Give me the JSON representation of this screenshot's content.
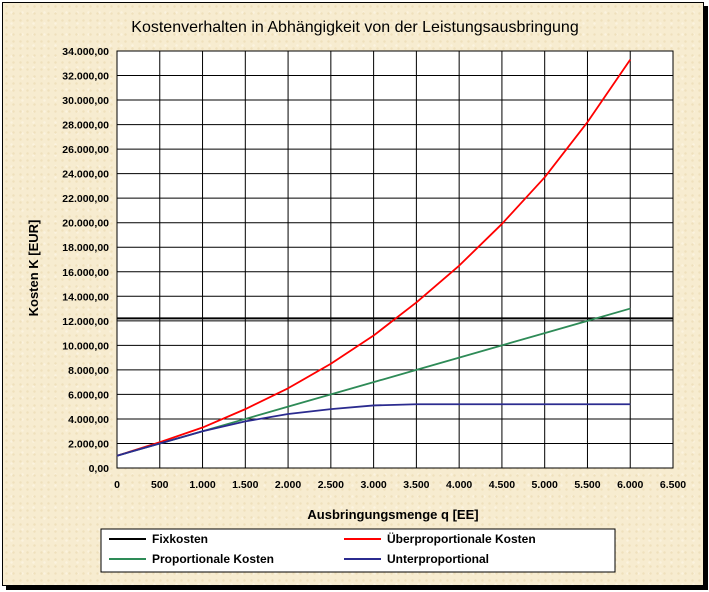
{
  "chart_data": {
    "type": "line",
    "title": "Kostenverhalten in Abhängigkeit von der Leistungsausbringung",
    "xlabel": "Ausbringungsmenge q [EE]",
    "ylabel": "Kosten K [EUR]",
    "xlim": [
      0,
      6500
    ],
    "ylim": [
      0,
      34000
    ],
    "xticks": [
      0,
      500,
      1000,
      1500,
      2000,
      2500,
      3000,
      3500,
      4000,
      4500,
      5000,
      5500,
      6000,
      6500
    ],
    "xtick_labels": [
      "0",
      "500",
      "1.000",
      "1.500",
      "2.000",
      "2.500",
      "3.000",
      "3.500",
      "4.000",
      "4.500",
      "5.000",
      "5.500",
      "6.000",
      "6.500"
    ],
    "yticks": [
      0,
      2000,
      4000,
      6000,
      8000,
      10000,
      12000,
      14000,
      16000,
      18000,
      20000,
      22000,
      24000,
      26000,
      28000,
      30000,
      32000,
      34000
    ],
    "ytick_labels": [
      "0,00",
      "2.000,00",
      "4.000,00",
      "6.000,00",
      "8.000,00",
      "10.000,00",
      "12.000,00",
      "14.000,00",
      "16.000,00",
      "18.000,00",
      "20.000,00",
      "22.000,00",
      "24.000,00",
      "26.000,00",
      "28.000,00",
      "30.000,00",
      "32.000,00",
      "34.000,00"
    ],
    "grid": true,
    "legend_position": "bottom",
    "x": [
      0,
      500,
      1000,
      1500,
      2000,
      2500,
      3000,
      3500,
      4000,
      4500,
      5000,
      5500,
      6000
    ],
    "series": [
      {
        "name": "Fixkosten",
        "color": "#000000",
        "values": [
          12200,
          12200,
          12200,
          12200,
          12200,
          12200,
          12200,
          12200,
          12200,
          12200,
          12200,
          12200,
          12200
        ],
        "extends_full_axis": true
      },
      {
        "name": "Überproportionale Kosten",
        "color": "#ff0000",
        "values": [
          1000,
          2100,
          3300,
          4800,
          6500,
          8500,
          10800,
          13500,
          16500,
          19900,
          23700,
          28200,
          33300
        ]
      },
      {
        "name": "Proportionale Kosten",
        "color": "#2e8b57",
        "values": [
          1000,
          2000,
          3000,
          4000,
          5000,
          6000,
          7000,
          8000,
          9000,
          10000,
          11000,
          12000,
          13000
        ]
      },
      {
        "name": "Unterproportional",
        "color": "#2b2b8f",
        "values": [
          1000,
          2000,
          3000,
          3800,
          4400,
          4800,
          5100,
          5200,
          5200,
          5200,
          5200,
          5200,
          5200
        ]
      }
    ]
  }
}
